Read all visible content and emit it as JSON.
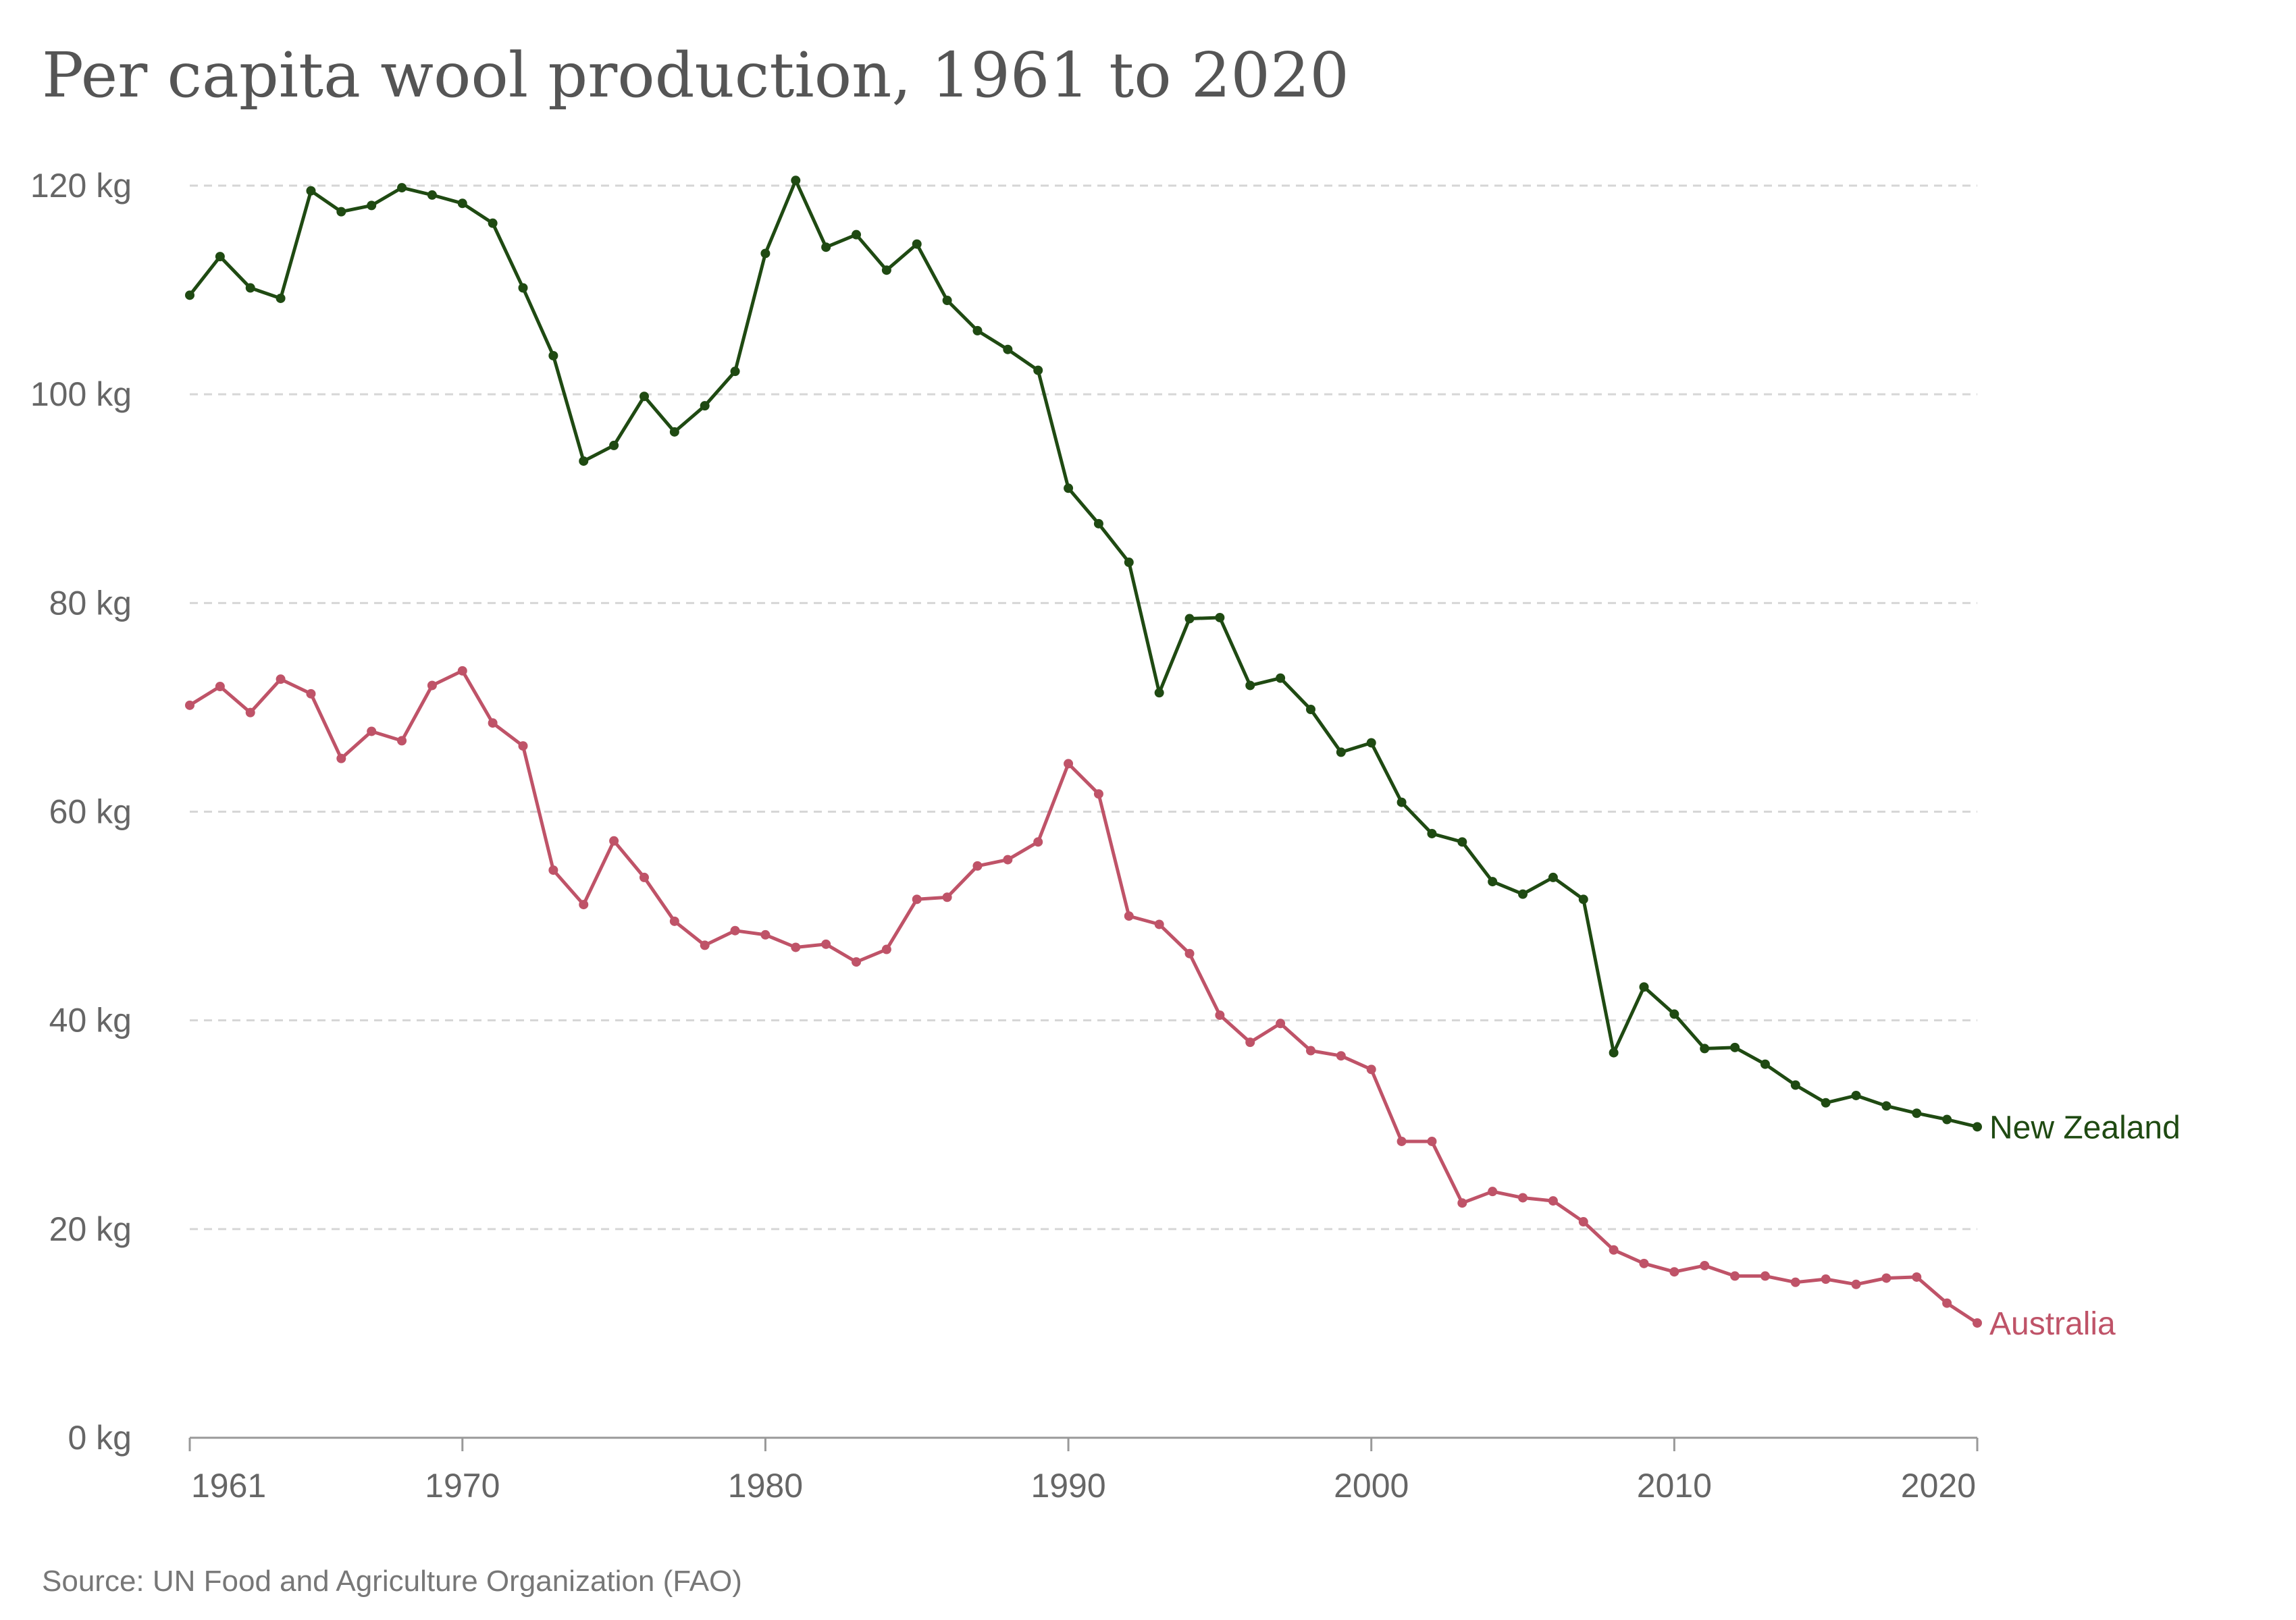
{
  "chart_data": {
    "type": "line",
    "title": "Per capita wool production, 1961 to 2020",
    "xlabel": "",
    "ylabel": "",
    "x": [
      1961,
      1962,
      1963,
      1964,
      1965,
      1966,
      1967,
      1968,
      1969,
      1970,
      1971,
      1972,
      1973,
      1974,
      1975,
      1976,
      1977,
      1978,
      1979,
      1980,
      1981,
      1982,
      1983,
      1984,
      1985,
      1986,
      1987,
      1988,
      1989,
      1990,
      1991,
      1992,
      1993,
      1994,
      1995,
      1996,
      1997,
      1998,
      1999,
      2000,
      2001,
      2002,
      2003,
      2004,
      2005,
      2006,
      2007,
      2008,
      2009,
      2010,
      2011,
      2012,
      2013,
      2014,
      2015,
      2016,
      2017,
      2018,
      2019,
      2020
    ],
    "xlim": [
      1961,
      2020
    ],
    "ylim": [
      0,
      120
    ],
    "x_ticks": [
      1961,
      1970,
      1980,
      1990,
      2000,
      2010,
      2020
    ],
    "y_ticks": [
      0,
      20,
      40,
      60,
      80,
      100,
      120
    ],
    "y_tick_labels": [
      "0 kg",
      "20 kg",
      "40 kg",
      "60 kg",
      "80 kg",
      "100 kg",
      "120 kg"
    ],
    "grid": "horizontal dashed",
    "series": [
      {
        "name": "New Zealand",
        "color": "#1f4a12",
        "values": [
          109.5,
          113.2,
          110.2,
          109.2,
          119.5,
          117.5,
          118.1,
          119.8,
          119.1,
          118.3,
          116.4,
          110.2,
          103.7,
          93.6,
          95.1,
          99.8,
          96.4,
          98.9,
          102.2,
          113.5,
          120.5,
          114.1,
          115.3,
          111.9,
          114.4,
          109.0,
          106.1,
          104.3,
          102.3,
          91.0,
          87.6,
          83.9,
          71.4,
          78.5,
          78.6,
          72.1,
          72.8,
          69.8,
          65.7,
          66.6,
          60.9,
          57.9,
          57.1,
          53.3,
          52.1,
          53.7,
          51.6,
          36.9,
          43.2,
          40.6,
          37.3,
          37.4,
          35.8,
          33.8,
          32.1,
          32.8,
          31.8,
          31.1,
          30.5,
          29.8
        ]
      },
      {
        "name": "Australia",
        "color": "#bf5368",
        "values": [
          70.2,
          72.0,
          69.5,
          72.7,
          71.3,
          65.1,
          67.7,
          66.8,
          72.1,
          73.5,
          68.5,
          66.3,
          54.4,
          51.1,
          57.2,
          53.7,
          49.5,
          47.2,
          48.6,
          48.2,
          47.0,
          47.3,
          45.6,
          46.8,
          51.6,
          51.8,
          54.8,
          55.4,
          57.1,
          64.6,
          61.7,
          50.0,
          49.2,
          46.4,
          40.5,
          37.9,
          39.7,
          37.1,
          36.6,
          35.3,
          28.4,
          28.4,
          22.5,
          23.6,
          23.0,
          22.7,
          20.7,
          18.0,
          16.7,
          15.9,
          16.5,
          15.5,
          15.5,
          14.9,
          15.2,
          14.7,
          15.3,
          15.4,
          12.9,
          11.0
        ]
      }
    ]
  },
  "source": "Source: UN Food and Agriculture Organization (FAO)"
}
